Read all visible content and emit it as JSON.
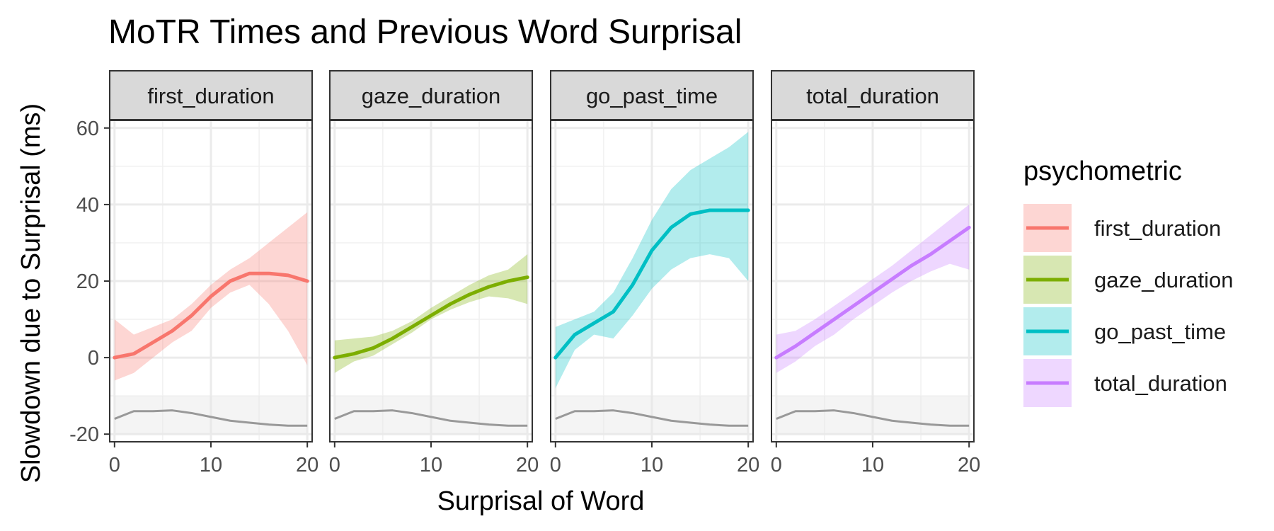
{
  "chart_data": {
    "type": "line",
    "title": "MoTR Times and Previous Word Surprisal",
    "xlabel": "Surprisal of Word",
    "ylabel": "Slowdown due to Surprisal (ms)",
    "xlim": [
      -0.5,
      20.5
    ],
    "ylim": [
      -22,
      62
    ],
    "x_ticks": [
      0,
      10,
      20
    ],
    "x_tick_labels": [
      "0",
      "10",
      "20"
    ],
    "y_ticks": [
      -20,
      0,
      20,
      40,
      60
    ],
    "y_tick_labels": [
      "-20",
      "0",
      "20",
      "40",
      "60"
    ],
    "grid": true,
    "legend": {
      "title": "psychometric",
      "position": "right"
    },
    "x": [
      0,
      2,
      4,
      6,
      8,
      10,
      12,
      14,
      16,
      18,
      20
    ],
    "series": [
      {
        "name": "first_duration",
        "color": "#F8766D",
        "values": [
          0,
          1,
          4,
          7,
          11,
          16,
          20,
          22,
          22,
          21.5,
          20
        ],
        "lower": [
          -6,
          -4,
          0,
          4,
          7,
          13,
          17,
          19,
          14,
          7,
          -2
        ],
        "upper": [
          10,
          6,
          8,
          10,
          14,
          19,
          23,
          26,
          30,
          34,
          38
        ]
      },
      {
        "name": "gaze_duration",
        "color": "#7CAE00",
        "values": [
          0,
          1,
          2.5,
          5,
          8,
          11,
          14,
          16.5,
          18.5,
          20,
          21
        ],
        "lower": [
          -4,
          -1,
          0.5,
          3.5,
          6.5,
          10,
          12.5,
          14.5,
          16,
          15.5,
          14
        ],
        "upper": [
          4.5,
          5,
          5.5,
          7,
          9.5,
          13,
          16,
          19,
          21.5,
          23,
          27
        ]
      },
      {
        "name": "go_past_time",
        "color": "#00BFC4",
        "values": [
          0,
          6,
          9,
          12,
          19,
          28,
          34,
          37.5,
          38.5,
          38.5,
          38.5
        ],
        "lower": [
          -8,
          2,
          6,
          5,
          11,
          18,
          23,
          26,
          27,
          26,
          20
        ],
        "upper": [
          8,
          10,
          12,
          17,
          26,
          36,
          44,
          49,
          52,
          55,
          59
        ]
      },
      {
        "name": "total_duration",
        "color": "#C77CFF",
        "values": [
          0,
          3,
          6.5,
          10,
          13.5,
          17,
          20.5,
          24,
          27,
          30.5,
          34
        ],
        "lower": [
          -4,
          -1,
          3,
          6,
          10,
          13.5,
          17,
          20,
          22.5,
          24.5,
          23
        ],
        "upper": [
          6,
          7,
          10,
          13.5,
          17,
          20.5,
          24,
          28,
          32,
          36,
          40
        ]
      }
    ],
    "background_series": {
      "color": "#999999",
      "band_range": [
        -20,
        -10
      ],
      "values": [
        -16,
        -14,
        -14,
        -13.8,
        -14.5,
        -15.5,
        -16.5,
        -17,
        -17.5,
        -17.8,
        -17.8
      ]
    },
    "facets": [
      "first_duration",
      "gaze_duration",
      "go_past_time",
      "total_duration"
    ]
  }
}
